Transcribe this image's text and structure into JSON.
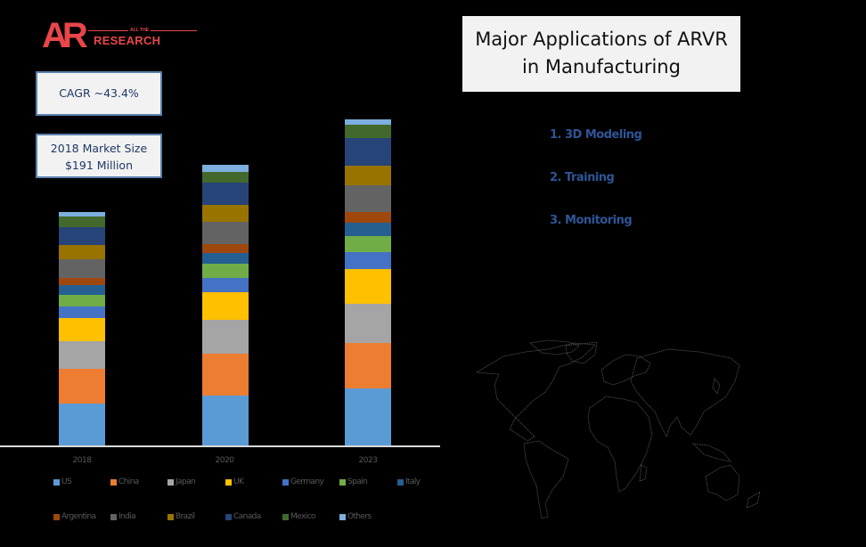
{
  "logo": {
    "mark": "AR",
    "tagline": "ALL THE",
    "wordmark": "RESEARCH",
    "color": "#e8464a"
  },
  "info_boxes": {
    "cagr": "CAGR ~43.4%",
    "market_size_line1": "2018 Market Size",
    "market_size_line2": "$191 Million"
  },
  "title": {
    "line1": "Major Applications of ARVR",
    "line2": "in Manufacturing"
  },
  "applications": [
    {
      "label": "1. 3D Modeling"
    },
    {
      "label": "2. Training"
    },
    {
      "label": "3. Monitoring"
    }
  ],
  "chart_data": {
    "type": "bar",
    "stacked": true,
    "title": "",
    "xlabel": "",
    "ylabel": "",
    "y_axis_shown": false,
    "grid": false,
    "legend_position": "bottom",
    "units_note": "no value axis shown; values are relative segment heights read from pixels",
    "categories": [
      "2018",
      "2020",
      "2023"
    ],
    "series": [
      {
        "name": "US",
        "color": "#5b9bd5",
        "values": [
          47,
          56,
          64
        ]
      },
      {
        "name": "China",
        "color": "#ed7d31",
        "values": [
          39,
          47,
          51
        ]
      },
      {
        "name": "Japan",
        "color": "#a5a5a5",
        "values": [
          31,
          38,
          44
        ]
      },
      {
        "name": "UK",
        "color": "#ffc000",
        "values": [
          26,
          31,
          39
        ]
      },
      {
        "name": "Germany",
        "color": "#4472c4",
        "values": [
          13,
          16,
          19
        ]
      },
      {
        "name": "Spain",
        "color": "#70ad47",
        "values": [
          13,
          16,
          18
        ]
      },
      {
        "name": "Italy",
        "color": "#255e91",
        "values": [
          11,
          12,
          15
        ]
      },
      {
        "name": "Argentina",
        "color": "#9e480e",
        "values": [
          8,
          10,
          12
        ]
      },
      {
        "name": "India",
        "color": "#636363",
        "values": [
          21,
          25,
          30
        ]
      },
      {
        "name": "Brazil",
        "color": "#997300",
        "values": [
          16,
          19,
          22
        ]
      },
      {
        "name": "Canada",
        "color": "#264478",
        "values": [
          20,
          25,
          31
        ]
      },
      {
        "name": "Mexico",
        "color": "#43682b",
        "values": [
          12,
          12,
          15
        ]
      },
      {
        "name": "Others",
        "color": "#7cafdd",
        "values": [
          5,
          8,
          6
        ]
      }
    ],
    "totals": [
      262,
      315,
      366
    ]
  },
  "map": {
    "description": "world map outline"
  }
}
